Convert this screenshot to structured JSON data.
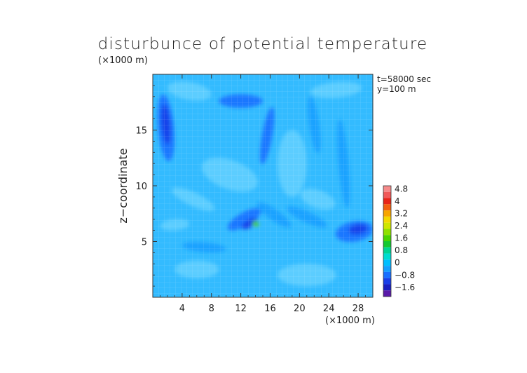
{
  "chart_data": {
    "type": "heatmap",
    "title": "disturbunce of potential temperature",
    "ylabel": "z−coordinate",
    "x_unit": "(×1000 m)",
    "y_unit": "(×1000 m)",
    "annotations": [
      "t=58000 sec",
      "y=100 m"
    ],
    "xlim": [
      0,
      30
    ],
    "ylim": [
      0,
      20
    ],
    "x_ticks": [
      {
        "value": 4,
        "label": "4"
      },
      {
        "value": 8,
        "label": "8"
      },
      {
        "value": 12,
        "label": "12"
      },
      {
        "value": 16,
        "label": "16"
      },
      {
        "value": 20,
        "label": "20"
      },
      {
        "value": 24,
        "label": "24"
      },
      {
        "value": 28,
        "label": "28"
      }
    ],
    "y_ticks": [
      {
        "value": 5,
        "label": "5"
      },
      {
        "value": 10,
        "label": "10"
      },
      {
        "value": 15,
        "label": "15"
      }
    ],
    "colorbar": {
      "levels": [
        {
          "label": "4.8",
          "color": "#f58a8a"
        },
        {
          "label": "",
          "color": "#f05a5a"
        },
        {
          "label": "4",
          "color": "#e82418"
        },
        {
          "label": "",
          "color": "#f26010"
        },
        {
          "label": "3.2",
          "color": "#f7a500"
        },
        {
          "label": "",
          "color": "#f3d800"
        },
        {
          "label": "2.4",
          "color": "#cfe600"
        },
        {
          "label": "",
          "color": "#8fe000"
        },
        {
          "label": "1.6",
          "color": "#4ad400"
        },
        {
          "label": "",
          "color": "#15c830"
        },
        {
          "label": "0.8",
          "color": "#00d492"
        },
        {
          "label": "",
          "color": "#00dcd0"
        },
        {
          "label": "0",
          "color": "#00bfff"
        },
        {
          "label": "",
          "color": "#14a0ff"
        },
        {
          "label": "−0.8",
          "color": "#1970ff"
        },
        {
          "label": "",
          "color": "#1a3fe8"
        },
        {
          "label": "−1.6",
          "color": "#1a20c0"
        },
        {
          "label": "",
          "color": "#5a1aa8"
        }
      ]
    },
    "background_color": "#33bbff",
    "features": [
      {
        "x": 1.8,
        "y": 15.2,
        "rx": 1.1,
        "ry": 3.0,
        "rot": -5,
        "value": -0.8
      },
      {
        "x": 1.8,
        "y": 15.5,
        "rx": 0.6,
        "ry": 1.8,
        "rot": -5,
        "value": -1.2
      },
      {
        "x": 12.0,
        "y": 17.6,
        "rx": 3.0,
        "ry": 0.6,
        "rot": 0,
        "value": -0.8
      },
      {
        "x": 15.6,
        "y": 14.5,
        "rx": 0.7,
        "ry": 2.6,
        "rot": 10,
        "value": -0.8
      },
      {
        "x": 22.0,
        "y": 15.5,
        "rx": 0.7,
        "ry": 2.6,
        "rot": -8,
        "value": -0.6
      },
      {
        "x": 26.0,
        "y": 12.0,
        "rx": 0.7,
        "ry": 4.0,
        "rot": -5,
        "value": -0.6
      },
      {
        "x": 12.5,
        "y": 7.0,
        "rx": 2.6,
        "ry": 0.6,
        "rot": -30,
        "value": -0.8
      },
      {
        "x": 13.2,
        "y": 6.6,
        "rx": 1.2,
        "ry": 0.35,
        "rot": -30,
        "value": -1.2
      },
      {
        "x": 16.5,
        "y": 7.4,
        "rx": 2.8,
        "ry": 0.5,
        "rot": 35,
        "value": -0.6
      },
      {
        "x": 21.0,
        "y": 7.2,
        "rx": 3.0,
        "ry": 0.5,
        "rot": 25,
        "value": -0.4
      },
      {
        "x": 27.5,
        "y": 5.9,
        "rx": 2.6,
        "ry": 0.9,
        "rot": -10,
        "value": -0.8
      },
      {
        "x": 28.0,
        "y": 6.1,
        "rx": 1.3,
        "ry": 0.45,
        "rot": -10,
        "value": -1.3
      },
      {
        "x": 7.0,
        "y": 4.5,
        "rx": 3.0,
        "ry": 0.45,
        "rot": 5,
        "value": -0.4
      },
      {
        "x": 14.0,
        "y": 6.6,
        "rx": 0.45,
        "ry": 0.25,
        "rot": 0,
        "value": 1.6
      },
      {
        "x": 10.5,
        "y": 11.0,
        "rx": 4.0,
        "ry": 1.3,
        "rot": 20,
        "value": 0.3
      },
      {
        "x": 5.0,
        "y": 18.5,
        "rx": 3.0,
        "ry": 0.8,
        "rot": 10,
        "value": 0.3
      },
      {
        "x": 25.0,
        "y": 18.6,
        "rx": 3.5,
        "ry": 0.7,
        "rot": -5,
        "value": 0.3
      },
      {
        "x": 21.0,
        "y": 2.0,
        "rx": 4.0,
        "ry": 1.0,
        "rot": 0,
        "value": 0.3
      },
      {
        "x": 6.0,
        "y": 2.5,
        "rx": 3.0,
        "ry": 0.8,
        "rot": 0,
        "value": 0.3
      },
      {
        "x": 19.0,
        "y": 12.0,
        "rx": 2.0,
        "ry": 3.0,
        "rot": 0,
        "value": 0.3
      },
      {
        "x": 22.5,
        "y": 8.8,
        "rx": 2.5,
        "ry": 0.8,
        "rot": 20,
        "value": 0.3
      },
      {
        "x": 5.5,
        "y": 8.8,
        "rx": 3.2,
        "ry": 0.6,
        "rot": 25,
        "value": 0.3
      },
      {
        "x": 3.0,
        "y": 6.5,
        "rx": 2.0,
        "ry": 0.5,
        "rot": -5,
        "value": 0.3
      }
    ]
  }
}
